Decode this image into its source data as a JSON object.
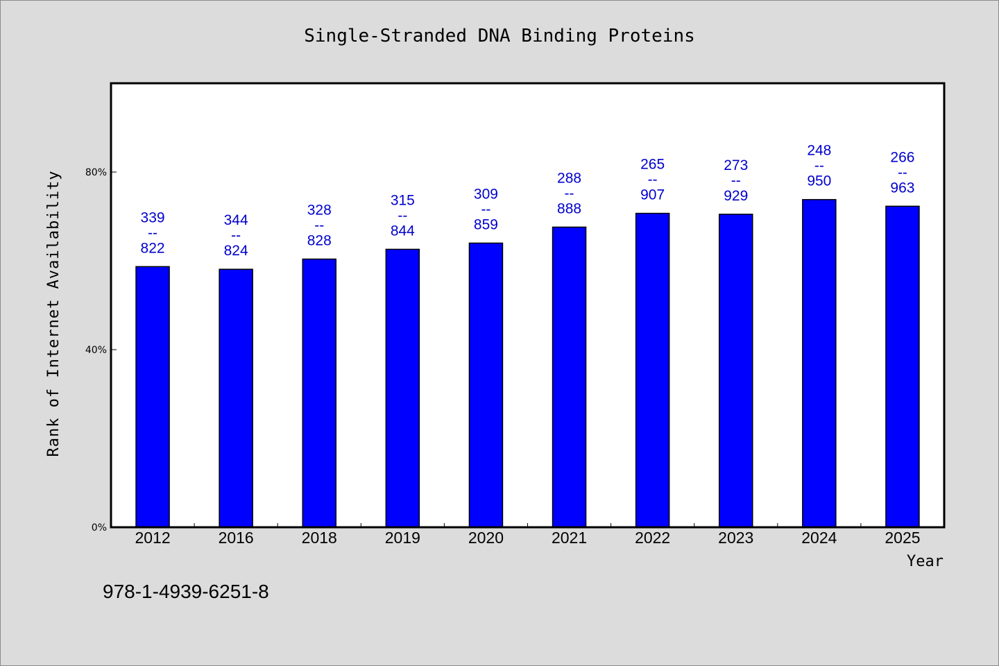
{
  "chart_data": {
    "type": "bar",
    "title": "Single-Stranded DNA Binding Proteins",
    "xlabel": "Year",
    "ylabel": "Rank of Internet Availability",
    "categories": [
      "2012",
      "2016",
      "2018",
      "2019",
      "2020",
      "2021",
      "2022",
      "2023",
      "2024",
      "2025"
    ],
    "values": [
      58.7,
      58.1,
      60.4,
      62.6,
      64.0,
      67.6,
      70.7,
      70.5,
      73.8,
      72.3
    ],
    "value_labels": [
      [
        "339",
        "--",
        "822"
      ],
      [
        "344",
        "--",
        "824"
      ],
      [
        "328",
        "--",
        "828"
      ],
      [
        "315",
        "--",
        "844"
      ],
      [
        "309",
        "--",
        "859"
      ],
      [
        "288",
        "--",
        "888"
      ],
      [
        "265",
        "--",
        "907"
      ],
      [
        "273",
        "--",
        "929"
      ],
      [
        "248",
        "--",
        "950"
      ],
      [
        "266",
        "--",
        "963"
      ]
    ],
    "ylim": [
      0,
      100
    ],
    "yticks": [
      0,
      40,
      80
    ],
    "ytick_labels": [
      "0%",
      "40%",
      "80%"
    ],
    "bar_color": "#0000ff",
    "label_color": "#0000cc",
    "grid": false,
    "legend": "none"
  },
  "footnote": "978-1-4939-6251-8"
}
